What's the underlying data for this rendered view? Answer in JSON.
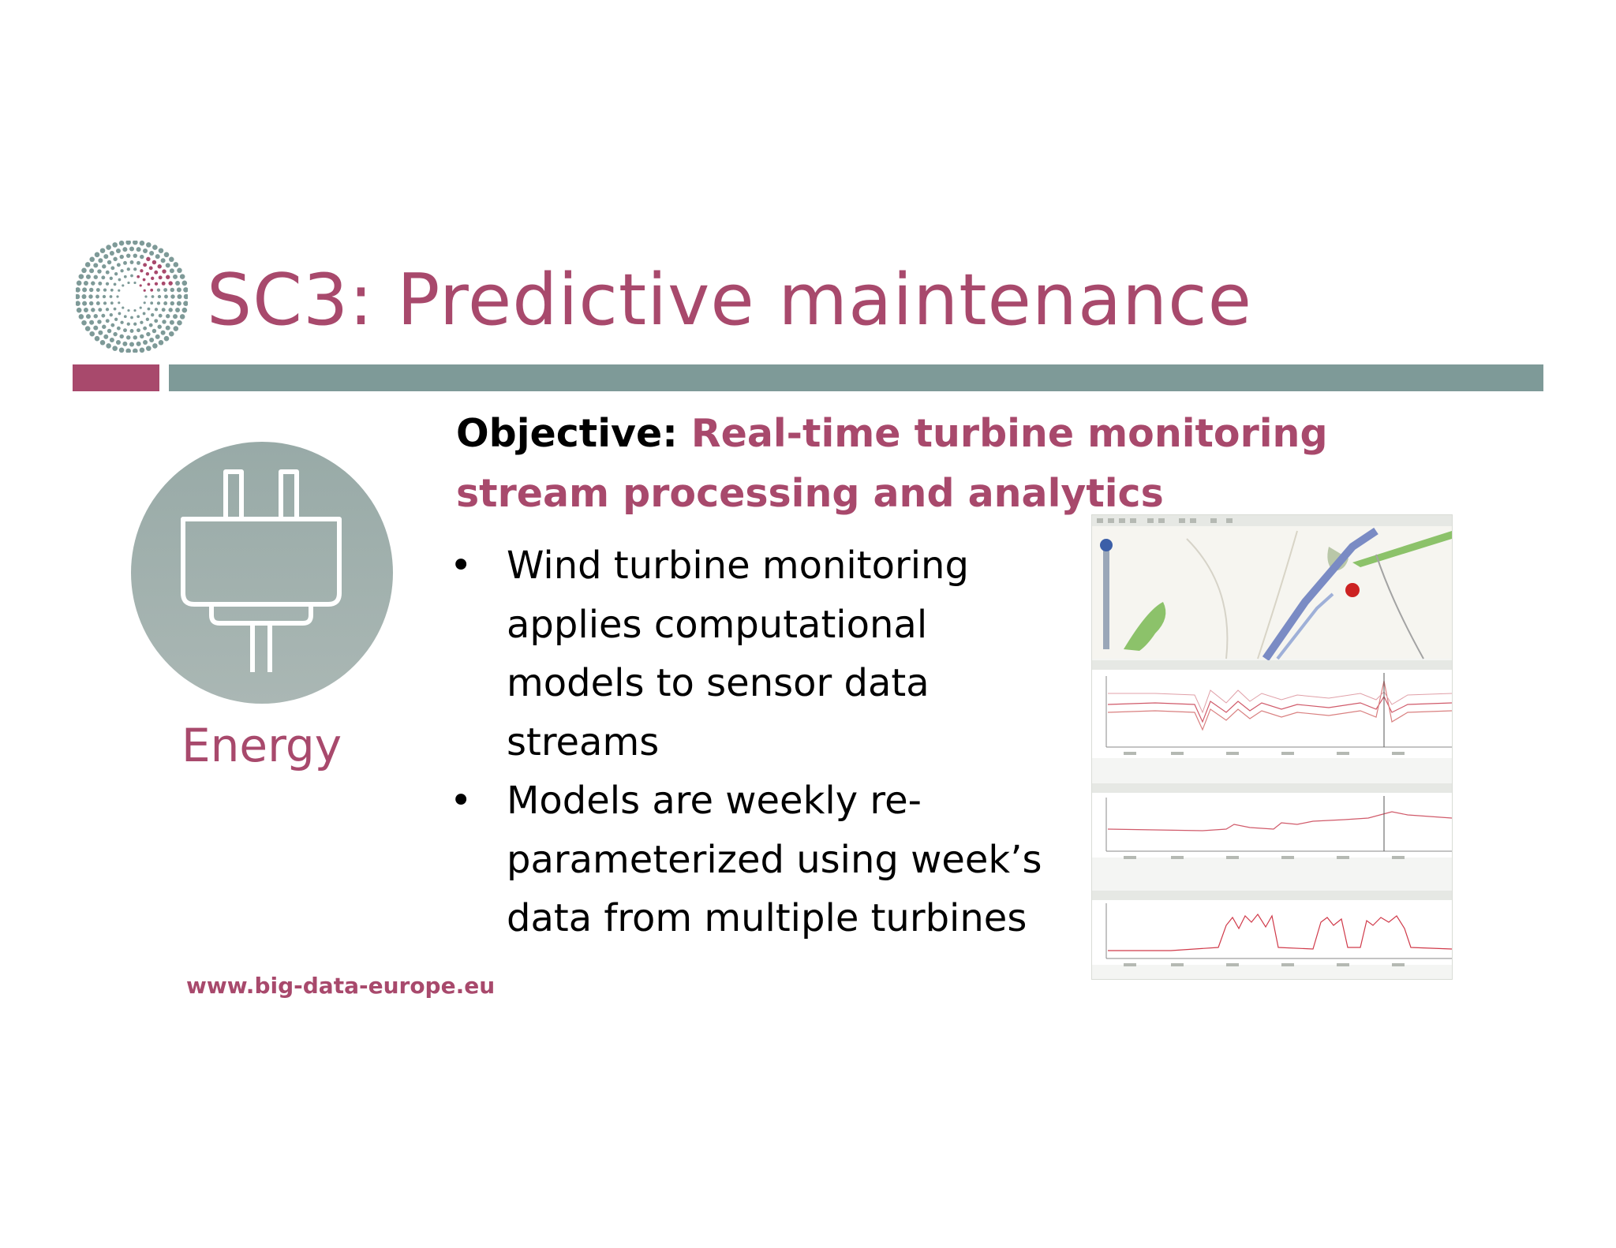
{
  "slide": {
    "title": "SC3: Predictive maintenance",
    "category_label": "Energy",
    "website": "www.big-data-europe.eu",
    "objective": {
      "label": "Objective:",
      "text": "Real-time turbine monitoring stream processing and analytics"
    },
    "bullets": [
      "Wind turbine monitoring applies computational models to sensor data streams",
      "Models are weekly re-parameterized using week’s data from multiple turbines"
    ],
    "bullet_symbol": "•"
  },
  "colors": {
    "accent": "#a8496c",
    "teal_bar": "#7e9a98",
    "circle": "#9fb0ad",
    "text": "#000000"
  },
  "icons": {
    "logo": "dotted-sunburst-logo",
    "energy": "power-plug-icon",
    "screenshot": "turbine-monitoring-dashboard-image"
  }
}
